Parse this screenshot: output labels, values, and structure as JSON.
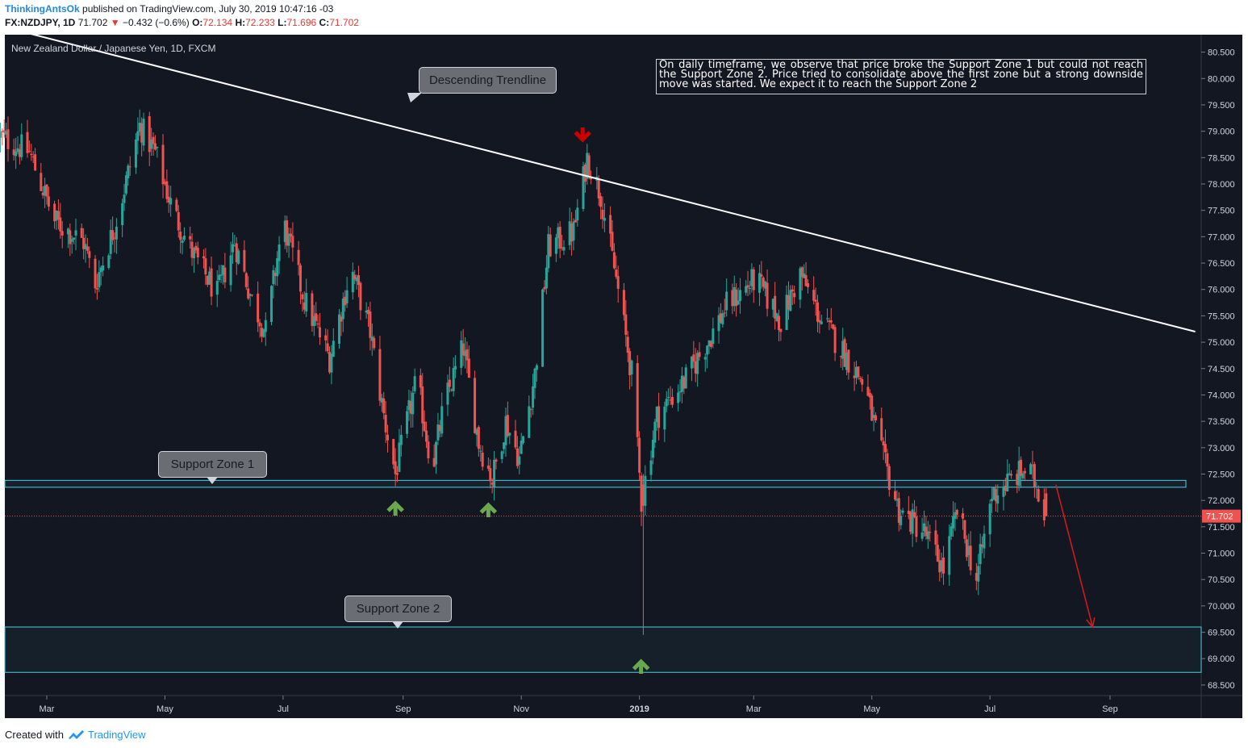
{
  "header": {
    "author": "ThinkingAntsOk",
    "published_text": "published on TradingView.com, July 30, 2019 10:47:16 -03",
    "symbol_interval": "FX:NZDJPY, 1D",
    "last_price": "71.702",
    "down_arrow": "▼",
    "change": "−0.432 (−0.6%)",
    "o_label": "O:",
    "o_value": "72.134",
    "h_label": "H:",
    "h_value": "72.233",
    "l_label": "L:",
    "l_value": "71.696",
    "c_label": "C:",
    "c_value": "71.702"
  },
  "footer": {
    "created_with": "Created with",
    "brand": "TradingView",
    "logo_icon": "tradingview-cloud-icon"
  },
  "chart_title": "New Zealand Dollar / Japanese Yen, 1D, FXCM",
  "annotation": "On daily timeframe, we observe that price broke the Support Zone 1 but could not reach the Support Zone 2. Price tried to consolidate above the first zone but a strong downside move was started. We expect it to reach the Support Zone 2",
  "callouts": {
    "trendline": "Descending Trendline",
    "zone1": "Support Zone 1",
    "zone2": "Support Zone 2"
  },
  "colors": {
    "background": "#131722",
    "up_candle": "#26a69a",
    "down_candle": "#ef5350",
    "zone_border": "#4dd0e1",
    "trendline": "#ffffff",
    "green_arrow": "#6aa84f",
    "red_arrow": "#cc0000",
    "last_price_badge": "#ef5350"
  },
  "chart_data": {
    "type": "candlestick",
    "title": "New Zealand Dollar / Japanese Yen, 1D, FXCM",
    "ylim": [
      68.3,
      80.8
    ],
    "y_ticks": [
      "80.500",
      "80.000",
      "79.500",
      "79.000",
      "78.500",
      "78.000",
      "77.500",
      "77.000",
      "76.500",
      "76.000",
      "75.500",
      "75.000",
      "74.500",
      "74.000",
      "73.500",
      "73.000",
      "72.500",
      "72.000",
      "71.500",
      "71.000",
      "70.500",
      "70.000",
      "69.500",
      "69.000",
      "68.500"
    ],
    "x_ticks": [
      {
        "label": "Mar",
        "date": "2018-03-01"
      },
      {
        "label": "May",
        "date": "2018-05-01"
      },
      {
        "label": "Jul",
        "date": "2018-07-01"
      },
      {
        "label": "Sep",
        "date": "2018-09-01"
      },
      {
        "label": "Nov",
        "date": "2018-11-01"
      },
      {
        "label": "2019",
        "date": "2019-01-01"
      },
      {
        "label": "Mar",
        "date": "2019-03-01"
      },
      {
        "label": "May",
        "date": "2019-05-01"
      },
      {
        "label": "Jul",
        "date": "2019-07-01"
      },
      {
        "label": "Sep",
        "date": "2019-09-01"
      }
    ],
    "last_price": 71.702,
    "price_path": [
      [
        "2018-02-05",
        78.9
      ],
      [
        "2018-02-20",
        78.6
      ],
      [
        "2018-03-05",
        77.3
      ],
      [
        "2018-03-20",
        76.9
      ],
      [
        "2018-03-26",
        76.1
      ],
      [
        "2018-04-05",
        77.2
      ],
      [
        "2018-04-12",
        78.2
      ],
      [
        "2018-04-18",
        79.1
      ],
      [
        "2018-04-26",
        78.6
      ],
      [
        "2018-05-05",
        77.5
      ],
      [
        "2018-05-15",
        76.7
      ],
      [
        "2018-05-28",
        75.9
      ],
      [
        "2018-06-06",
        76.9
      ],
      [
        "2018-06-15",
        75.8
      ],
      [
        "2018-06-22",
        75.2
      ],
      [
        "2018-07-01",
        77.3
      ],
      [
        "2018-07-12",
        75.8
      ],
      [
        "2018-07-25",
        74.7
      ],
      [
        "2018-08-05",
        76.4
      ],
      [
        "2018-08-15",
        75.2
      ],
      [
        "2018-08-22",
        73.6
      ],
      [
        "2018-08-28",
        72.5
      ],
      [
        "2018-09-08",
        74.3
      ],
      [
        "2018-09-16",
        72.6
      ],
      [
        "2018-09-22",
        73.8
      ],
      [
        "2018-10-02",
        74.9
      ],
      [
        "2018-10-10",
        73.1
      ],
      [
        "2018-10-17",
        72.4
      ],
      [
        "2018-10-24",
        73.5
      ],
      [
        "2018-10-31",
        72.8
      ],
      [
        "2018-11-08",
        74.4
      ],
      [
        "2018-11-15",
        76.8
      ],
      [
        "2018-11-28",
        77.1
      ],
      [
        "2018-12-05",
        78.5
      ],
      [
        "2018-12-12",
        77.8
      ],
      [
        "2018-12-20",
        76.2
      ],
      [
        "2018-12-28",
        74.4
      ],
      [
        "2019-01-02",
        72.0
      ],
      [
        "2019-01-10",
        73.6
      ],
      [
        "2019-01-25",
        74.3
      ],
      [
        "2019-02-05",
        75.0
      ],
      [
        "2019-02-15",
        75.7
      ],
      [
        "2019-03-02",
        76.2
      ],
      [
        "2019-03-15",
        75.4
      ],
      [
        "2019-03-25",
        76.3
      ],
      [
        "2019-04-05",
        75.4
      ],
      [
        "2019-04-15",
        74.9
      ],
      [
        "2019-04-27",
        74.2
      ],
      [
        "2019-05-06",
        72.9
      ],
      [
        "2019-05-15",
        71.8
      ],
      [
        "2019-05-28",
        71.4
      ],
      [
        "2019-06-07",
        70.7
      ],
      [
        "2019-06-14",
        71.8
      ],
      [
        "2019-06-24",
        70.5
      ],
      [
        "2019-07-02",
        72.1
      ],
      [
        "2019-07-12",
        72.4
      ],
      [
        "2019-07-20",
        72.6
      ],
      [
        "2019-07-25",
        72.3
      ],
      [
        "2019-07-30",
        71.702
      ]
    ],
    "annotations": {
      "support_zone_1": [
        72.25,
        72.38
      ],
      "support_zone_2": [
        68.74,
        69.6
      ],
      "trendline": [
        [
          "2018-02-15",
          80.9
        ],
        [
          "2019-10-15",
          75.2
        ]
      ],
      "projection_arrow": [
        [
          "2019-08-04",
          72.3
        ],
        [
          "2019-08-23",
          69.6
        ]
      ],
      "green_arrows": [
        "2018-08-28",
        "2018-10-15",
        "2019-01-01"
      ],
      "red_arrow": "2018-12-01"
    }
  }
}
